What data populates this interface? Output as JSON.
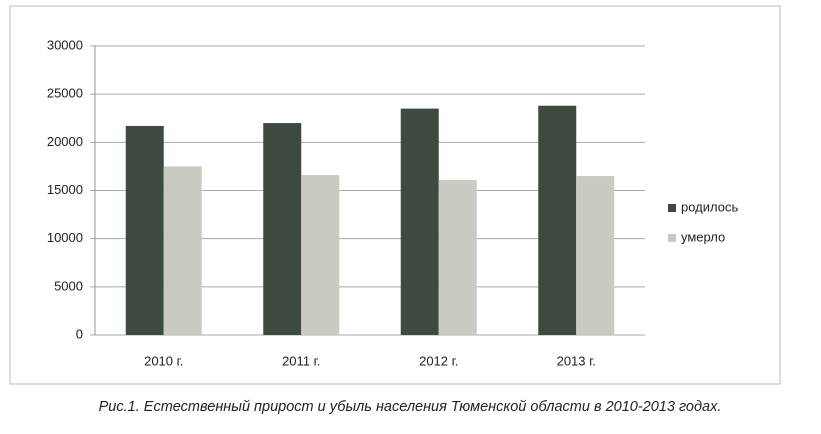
{
  "chart_data": {
    "type": "bar",
    "caption": "Рис.1. Естественный прирост и убыль населения Тюменской области в 2010-2013 годах.",
    "categories": [
      "2010 г.",
      "2011 г.",
      "2012 г.",
      "2013 г."
    ],
    "series": [
      {
        "name": "родилось",
        "color": "#3d4a40",
        "values": [
          21700,
          22000,
          23500,
          23800
        ]
      },
      {
        "name": "умерло",
        "color": "#c9cac2",
        "values": [
          17500,
          16600,
          16100,
          16500
        ]
      }
    ],
    "ylim": [
      0,
      30000
    ],
    "yticks": [
      0,
      5000,
      10000,
      15000,
      20000,
      25000,
      30000
    ],
    "grid": true,
    "legend": "right"
  }
}
